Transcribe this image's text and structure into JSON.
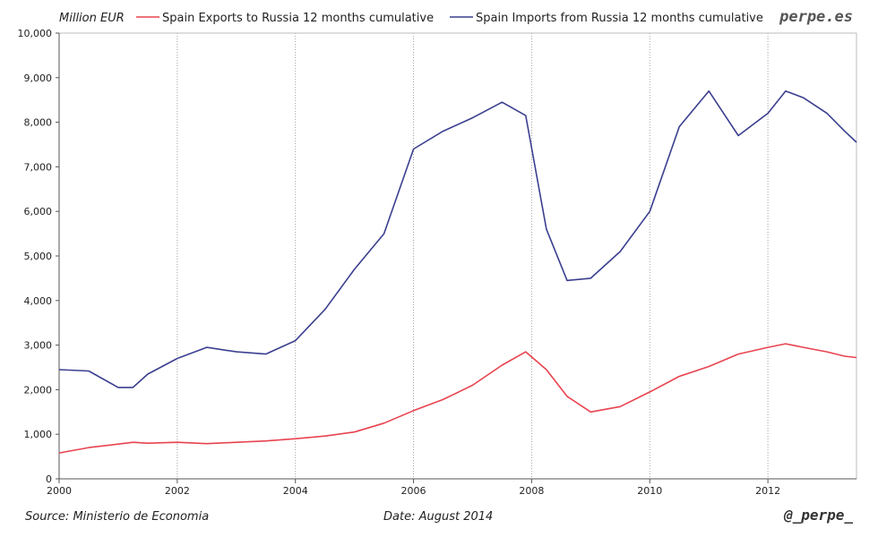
{
  "unit_label": "Million EUR",
  "brand": "perpe.es",
  "source": "Source: Ministerio de Economia",
  "date": "Date: August 2014",
  "handle": "@_perpe_",
  "colors": {
    "exports": "#e8434f",
    "imports": "#3b3f8f",
    "grid": "#a0a0a0",
    "axis": "#555555"
  },
  "chart_data": {
    "type": "line",
    "title": "",
    "xlabel": "",
    "ylabel": "Million EUR",
    "xlim": [
      2000.0,
      2013.5
    ],
    "ylim": [
      0,
      10000
    ],
    "x_ticks": [
      "2000",
      "2002",
      "2004",
      "2006",
      "2008",
      "2010",
      "2012"
    ],
    "y_ticks": [
      "0",
      "1,000",
      "2,000",
      "3,000",
      "4,000",
      "5,000",
      "6,000",
      "7,000",
      "8,000",
      "9,000",
      "10,000"
    ],
    "grid": "vertical dotted lines at even years",
    "legend_position": "top",
    "x": [
      2000.0,
      2000.5,
      2001.0,
      2001.25,
      2001.5,
      2002.0,
      2002.5,
      2003.0,
      2003.5,
      2004.0,
      2004.5,
      2005.0,
      2005.5,
      2006.0,
      2006.5,
      2007.0,
      2007.5,
      2007.9,
      2008.25,
      2008.6,
      2009.0,
      2009.5,
      2010.0,
      2010.5,
      2011.0,
      2011.5,
      2012.0,
      2012.3,
      2012.6,
      2013.0,
      2013.3,
      2013.5
    ],
    "series": [
      {
        "name": "Spain Exports to Russia 12 months cumulative",
        "values": [
          580,
          700,
          780,
          820,
          800,
          820,
          790,
          820,
          850,
          900,
          960,
          1050,
          1250,
          1530,
          1780,
          2100,
          2550,
          2850,
          2450,
          1850,
          1500,
          1620,
          1950,
          2300,
          2520,
          2800,
          2950,
          3030,
          2950,
          2850,
          2750,
          2720
        ]
      },
      {
        "name": "Spain Imports from Russia 12 months cumulative",
        "values": [
          2450,
          2420,
          2050,
          2050,
          2350,
          2700,
          2950,
          2850,
          2800,
          3100,
          3800,
          4700,
          5500,
          7400,
          7800,
          8100,
          8450,
          8150,
          5600,
          4450,
          4500,
          5100,
          6000,
          7900,
          8700,
          7700,
          8200,
          8700,
          8550,
          8200,
          7800,
          7550
        ]
      }
    ]
  }
}
